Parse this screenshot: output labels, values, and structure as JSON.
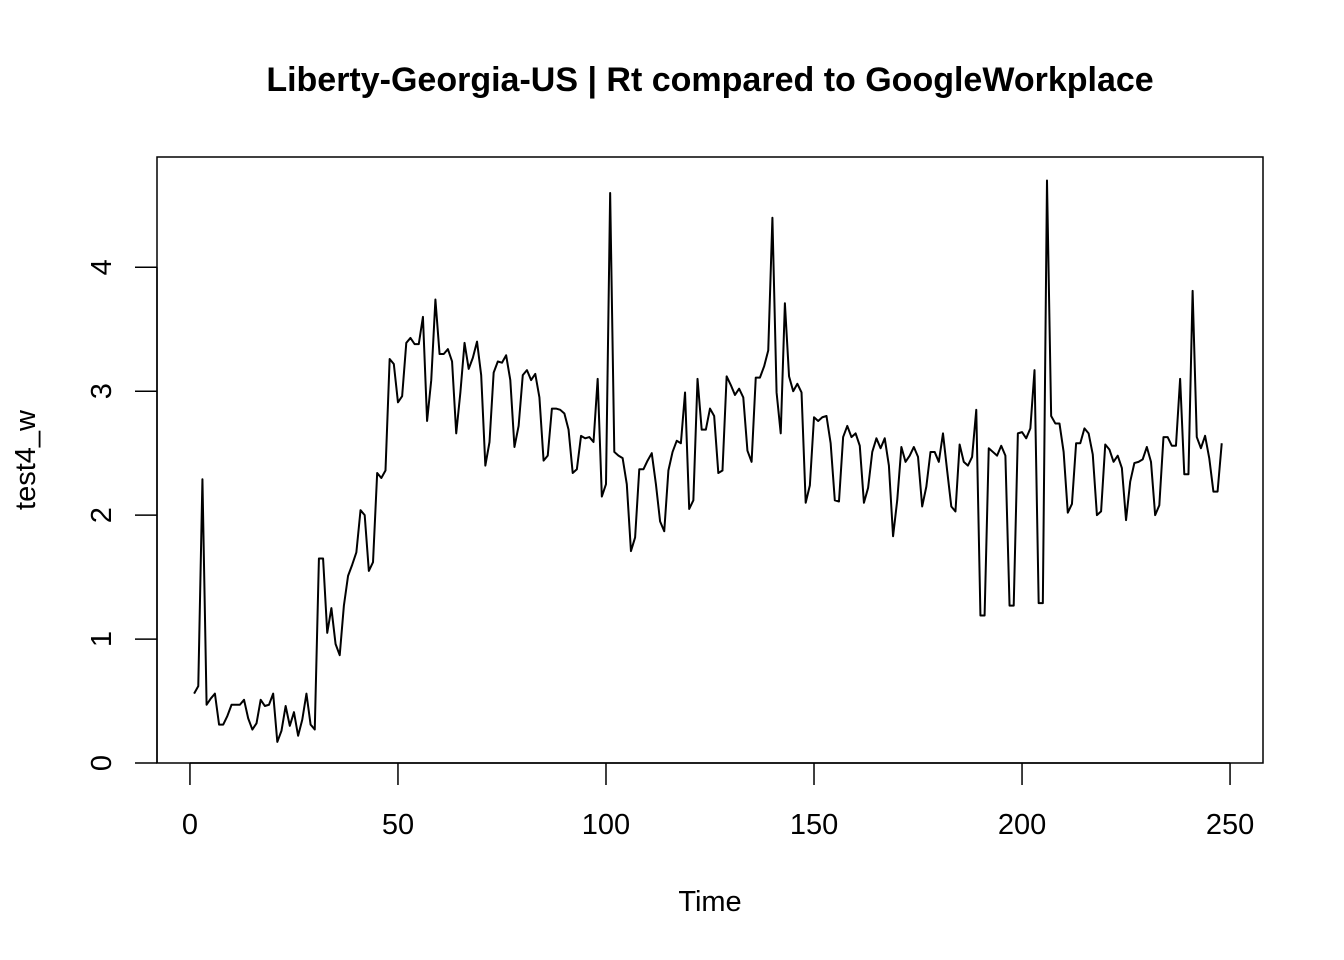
{
  "chart_data": {
    "type": "line",
    "title": "Liberty-Georgia-US | Rt compared to GoogleWorkplace",
    "xlabel": "Time",
    "ylabel": "test4_w",
    "xlim": [
      -7.92,
      257.92
    ],
    "ylim": [
      0,
      4.89
    ],
    "xticks": [
      0,
      50,
      100,
      150,
      200,
      250
    ],
    "yticks": [
      0,
      1,
      2,
      3,
      4
    ],
    "grid": false,
    "legend": "none",
    "line_color": "#000000",
    "series": [
      {
        "x": [
          1,
          2,
          3,
          4,
          5,
          6,
          7,
          8,
          9,
          10,
          11,
          12,
          13,
          14,
          15,
          16,
          17,
          18,
          19,
          20,
          21,
          22,
          23,
          24,
          25,
          26,
          27,
          28,
          29,
          30,
          31,
          32,
          33,
          34,
          35,
          36,
          37,
          38,
          39,
          40,
          41,
          42,
          43,
          44,
          45,
          46,
          47,
          48,
          49,
          50,
          51,
          52,
          53,
          54,
          55,
          56,
          57,
          58,
          59,
          60,
          61,
          62,
          63,
          64,
          65,
          66,
          67,
          68,
          69,
          70,
          71,
          72,
          73,
          74,
          75,
          76,
          77,
          78,
          79,
          80,
          81,
          82,
          83,
          84,
          85,
          86,
          87,
          88,
          89,
          90,
          91,
          92,
          93,
          94,
          95,
          96,
          97,
          98,
          99,
          100,
          101,
          102,
          103,
          104,
          105,
          106,
          107,
          108,
          109,
          110,
          111,
          112,
          113,
          114,
          115,
          116,
          117,
          118,
          119,
          120,
          121,
          122,
          123,
          124,
          125,
          126,
          127,
          128,
          129,
          130,
          131,
          132,
          133,
          134,
          135,
          136,
          137,
          138,
          139,
          140,
          141,
          142,
          143,
          144,
          145,
          146,
          147,
          148,
          149,
          150,
          151,
          152,
          153,
          154,
          155,
          156,
          157,
          158,
          159,
          160,
          161,
          162,
          163,
          164,
          165,
          166,
          167,
          168,
          169,
          170,
          171,
          172,
          173,
          174,
          175,
          176,
          177,
          178,
          179,
          180,
          181,
          182,
          183,
          184,
          185,
          186,
          187,
          188,
          189,
          190,
          191,
          192,
          193,
          194,
          195,
          196,
          197,
          198,
          199,
          200,
          201,
          202,
          203,
          204,
          205,
          206,
          207,
          208,
          209,
          210,
          211,
          212,
          213,
          214,
          215,
          216,
          217,
          218,
          219,
          220,
          221,
          222,
          223,
          224,
          225,
          226,
          227,
          228,
          229,
          230,
          231,
          232,
          233,
          234,
          235,
          236,
          237,
          238,
          239,
          240,
          241,
          242,
          243,
          244,
          245,
          246,
          247,
          248
        ],
        "values": [
          0.56,
          0.62,
          2.29,
          0.47,
          0.52,
          0.56,
          0.31,
          0.31,
          0.38,
          0.47,
          0.47,
          0.47,
          0.51,
          0.36,
          0.27,
          0.32,
          0.51,
          0.46,
          0.47,
          0.56,
          0.17,
          0.26,
          0.46,
          0.3,
          0.41,
          0.22,
          0.35,
          0.56,
          0.31,
          0.27,
          1.65,
          1.65,
          1.05,
          1.25,
          0.96,
          0.87,
          1.27,
          1.51,
          1.6,
          1.7,
          2.04,
          2.0,
          1.55,
          1.62,
          2.34,
          2.3,
          2.36,
          3.26,
          3.22,
          2.91,
          2.96,
          3.39,
          3.43,
          3.38,
          3.38,
          3.6,
          2.76,
          3.09,
          3.74,
          3.3,
          3.3,
          3.34,
          3.24,
          2.66,
          2.99,
          3.39,
          3.18,
          3.27,
          3.4,
          3.13,
          2.4,
          2.59,
          3.15,
          3.24,
          3.23,
          3.29,
          3.09,
          2.55,
          2.72,
          3.13,
          3.17,
          3.09,
          3.14,
          2.95,
          2.44,
          2.48,
          2.86,
          2.86,
          2.85,
          2.82,
          2.69,
          2.34,
          2.37,
          2.64,
          2.62,
          2.63,
          2.59,
          3.1,
          2.15,
          2.25,
          4.6,
          2.51,
          2.48,
          2.46,
          2.25,
          1.71,
          1.82,
          2.37,
          2.37,
          2.44,
          2.5,
          2.25,
          1.95,
          1.87,
          2.36,
          2.51,
          2.6,
          2.58,
          2.99,
          2.05,
          2.12,
          3.1,
          2.69,
          2.69,
          2.86,
          2.8,
          2.34,
          2.36,
          3.12,
          3.05,
          2.97,
          3.02,
          2.95,
          2.52,
          2.43,
          3.11,
          3.11,
          3.2,
          3.33,
          4.4,
          2.99,
          2.66,
          3.71,
          3.12,
          3.0,
          3.06,
          2.99,
          2.1,
          2.24,
          2.79,
          2.76,
          2.79,
          2.8,
          2.58,
          2.12,
          2.11,
          2.63,
          2.72,
          2.63,
          2.66,
          2.56,
          2.1,
          2.22,
          2.51,
          2.62,
          2.54,
          2.62,
          2.4,
          1.83,
          2.12,
          2.55,
          2.43,
          2.48,
          2.55,
          2.47,
          2.07,
          2.23,
          2.51,
          2.51,
          2.43,
          2.66,
          2.36,
          2.07,
          2.03,
          2.57,
          2.43,
          2.4,
          2.47,
          2.85,
          1.19,
          1.19,
          2.54,
          2.51,
          2.48,
          2.56,
          2.48,
          1.27,
          1.27,
          2.66,
          2.67,
          2.62,
          2.7,
          3.17,
          1.29,
          1.29,
          4.7,
          2.8,
          2.74,
          2.74,
          2.51,
          2.02,
          2.09,
          2.58,
          2.58,
          2.7,
          2.66,
          2.49,
          2.0,
          2.03,
          2.57,
          2.53,
          2.43,
          2.48,
          2.38,
          1.96,
          2.27,
          2.42,
          2.43,
          2.45,
          2.55,
          2.43,
          2.0,
          2.08,
          2.63,
          2.63,
          2.56,
          2.56,
          3.1,
          2.33,
          2.33,
          3.81,
          2.63,
          2.54,
          2.64,
          2.46,
          2.19,
          2.19,
          2.58
        ]
      }
    ]
  }
}
